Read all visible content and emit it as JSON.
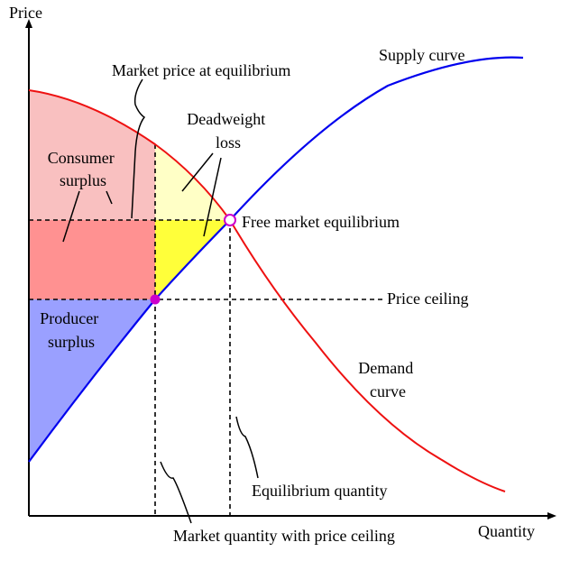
{
  "colors": {
    "background": "#ffffff",
    "supply": "#0000ee",
    "demand": "#ee1111",
    "consumer_top": "#f9c0c0",
    "consumer_transfer": "#ff9191",
    "deadweight_top": "#ffffc6",
    "deadweight_bottom": "#ffff3a",
    "producer": "#9aa0ff",
    "ceiling_point": "#cc00cc",
    "equilibrium_point": "#cc00cc"
  },
  "axes": {
    "y_label": "Price",
    "x_label": "Quantity"
  },
  "labels": {
    "market_price": "Market price at equilibrium",
    "deadweight": [
      "Deadweight",
      "loss"
    ],
    "consumer_surplus": [
      "Consumer",
      "surplus"
    ],
    "producer_surplus": [
      "Producer",
      "surplus"
    ],
    "supply_curve": "Supply curve",
    "demand_curve": [
      "Demand",
      "curve"
    ],
    "free_market_equilibrium": "Free market equilibrium",
    "price_ceiling": "Price ceiling",
    "equilibrium_quantity": "Equilibrium quantity",
    "market_quantity_ceiling": "Market quantity with price ceiling"
  }
}
